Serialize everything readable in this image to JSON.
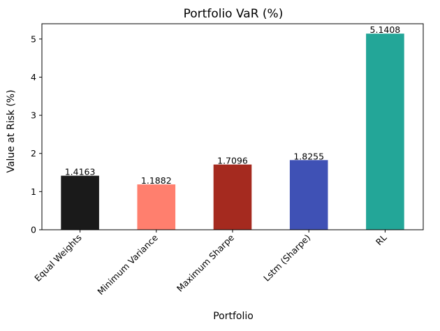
{
  "chart_data": {
    "type": "bar",
    "title": "Portfolio VaR (%)",
    "xlabel": "Portfolio",
    "ylabel": "Value at Risk (%)",
    "categories": [
      "Equal Weights",
      "Minimum Variance",
      "Maximum Sharpe",
      "Lstm (Sharpe)",
      "RL"
    ],
    "values": [
      1.4163,
      1.1882,
      1.7096,
      1.8255,
      5.1408
    ],
    "value_labels": [
      "1.4163",
      "1.1882",
      "1.7096",
      "1.8255",
      "5.1408"
    ],
    "colors": [
      "#1a1a1a",
      "#ff7f6e",
      "#a52a1f",
      "#3f51b5",
      "#23a698"
    ],
    "yticks": [
      0,
      1,
      2,
      3,
      4,
      5
    ],
    "ylim": [
      0,
      5.4
    ],
    "grid": false,
    "legend": "none",
    "x_tick_rotation_deg": 45
  }
}
